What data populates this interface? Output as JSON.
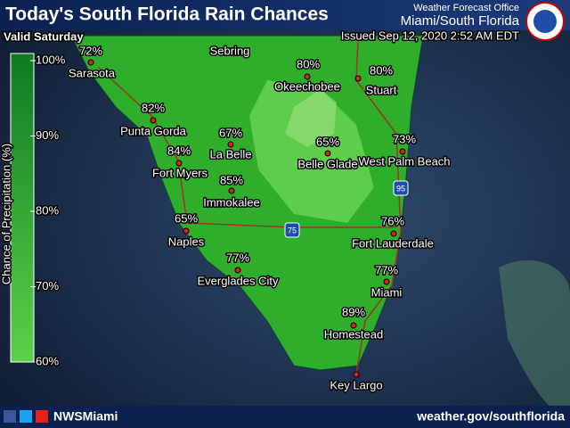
{
  "header": {
    "title": "Today's South Florida Rain Chances",
    "valid": "Valid Saturday",
    "office": "Weather Forecast Office",
    "region": "Miami/South Florida",
    "issued": "Issued Sep 12, 2020 2:52 AM EDT"
  },
  "legend": {
    "title": "Chance of Precipitation (%)",
    "ticks": [
      "100%",
      "90%",
      "80%",
      "70%",
      "60%"
    ]
  },
  "cities": [
    {
      "name": "Sarasota",
      "chance": "72%"
    },
    {
      "name": "Sebring"
    },
    {
      "name": "Okeechobee",
      "chance": "80%"
    },
    {
      "name": "Stuart",
      "chance": "80%"
    },
    {
      "name": "Punta Gorda",
      "chance": "82%"
    },
    {
      "name": "La Belle",
      "chance": "67%"
    },
    {
      "name": "Belle Glade",
      "chance": "65%"
    },
    {
      "name": "West Palm Beach",
      "chance": "73%"
    },
    {
      "name": "Fort Myers",
      "chance": "84%"
    },
    {
      "name": "Immokalee",
      "chance": "85%"
    },
    {
      "name": "Naples",
      "chance": "65%"
    },
    {
      "name": "Fort Lauderdale",
      "chance": "76%"
    },
    {
      "name": "Everglades City",
      "chance": "77%"
    },
    {
      "name": "Miami",
      "chance": "77%"
    },
    {
      "name": "Homestead",
      "chance": "89%"
    },
    {
      "name": "Key Largo"
    }
  ],
  "highways": [
    "95",
    "75"
  ],
  "footer": {
    "handle": "NWSMiami",
    "url": "weather.gov/southflorida"
  }
}
